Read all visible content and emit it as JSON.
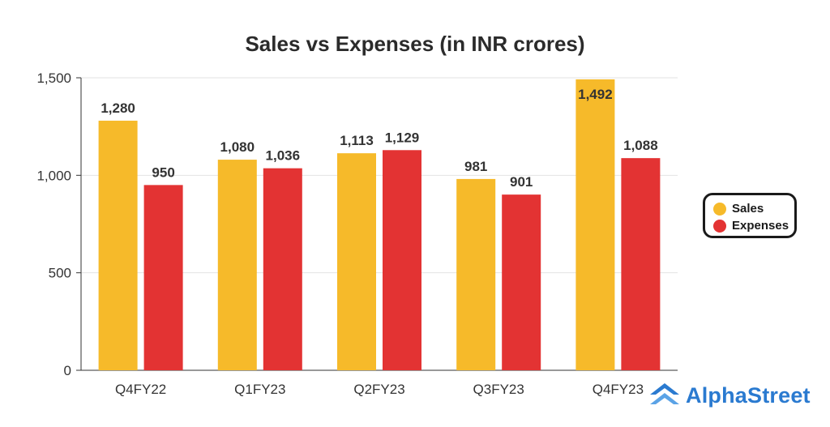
{
  "chart_data": {
    "type": "bar",
    "title": "Sales vs Expenses (in INR crores)",
    "categories": [
      "Q4FY22",
      "Q1FY23",
      "Q2FY23",
      "Q3FY23",
      "Q4FY23"
    ],
    "series": [
      {
        "name": "Sales",
        "color": "#F6BA2A",
        "values": [
          1280,
          1080,
          1113,
          981,
          1492
        ],
        "labels": [
          "1,280",
          "1,080",
          "1,113",
          "981",
          "1,492"
        ]
      },
      {
        "name": "Expenses",
        "color": "#E33333",
        "values": [
          950,
          1036,
          1129,
          901,
          1088
        ],
        "labels": [
          "950",
          "1,036",
          "1,129",
          "901",
          "1,088"
        ]
      }
    ],
    "yticks": [
      0,
      500,
      1000,
      1500
    ],
    "ytick_labels": [
      "0",
      "500",
      "1,000",
      "1,500"
    ],
    "ylim": [
      0,
      1500
    ],
    "grid": true,
    "xlabel": "",
    "ylabel": "",
    "legend_position": "right"
  },
  "brand": {
    "name": "AlphaStreet",
    "color": "#2A7AD0",
    "icon": "alphastreet-logo-icon"
  }
}
